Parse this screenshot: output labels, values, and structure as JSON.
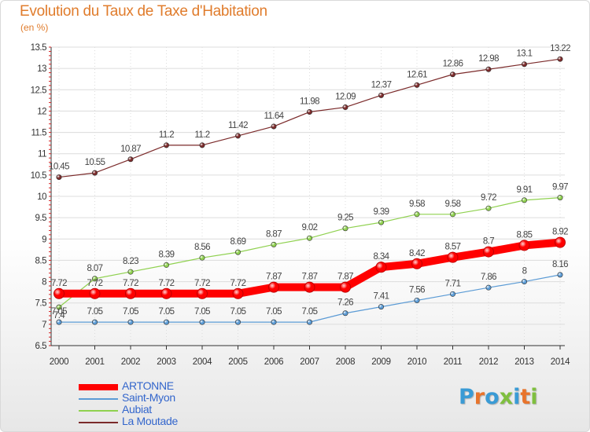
{
  "header": {
    "title": "Evolution du Taux de Taxe d'Habitation",
    "subtitle": "(en %)"
  },
  "logo": {
    "text": "Proxiti",
    "colors": [
      "#3a9bd5",
      "#e8742c",
      "#3a9bd5",
      "#7fbf3f",
      "#3a9bd5",
      "#e8742c",
      "#7fbf3f"
    ]
  },
  "chart_data": {
    "type": "line",
    "x": [
      2000,
      2001,
      2002,
      2003,
      2004,
      2005,
      2006,
      2007,
      2008,
      2009,
      2010,
      2011,
      2012,
      2013,
      2014
    ],
    "ylim": [
      6.5,
      13.5
    ],
    "yticks": [
      6.5,
      7,
      7.5,
      8,
      8.5,
      9,
      9.5,
      10,
      10.5,
      11,
      11.5,
      12,
      12.5,
      13,
      13.5
    ],
    "ytick_labels": [
      "6.5",
      "7",
      "7.5",
      "8",
      "8.5",
      "9",
      "9.5",
      "10",
      "10.5",
      "11",
      "11.5",
      "12",
      "12.5",
      "13",
      "13.5"
    ],
    "grid": true,
    "legend_position": "bottom-left",
    "series": [
      {
        "name": "ARTONNE",
        "color": "#ff0000",
        "values": [
          7.72,
          7.72,
          7.72,
          7.72,
          7.72,
          7.72,
          7.87,
          7.87,
          7.87,
          8.34,
          8.42,
          8.57,
          8.7,
          8.85,
          8.92
        ]
      },
      {
        "name": "Saint-Myon",
        "color": "#5b9bd5",
        "values": [
          7.05,
          7.05,
          7.05,
          7.05,
          7.05,
          7.05,
          7.05,
          7.05,
          7.26,
          7.41,
          7.56,
          7.71,
          7.86,
          8,
          8.16
        ]
      },
      {
        "name": "Aubiat",
        "color": "#8fd14f",
        "values": [
          7.4,
          8.07,
          8.23,
          8.39,
          8.56,
          8.69,
          8.87,
          9.02,
          9.25,
          9.39,
          9.58,
          9.58,
          9.72,
          9.91,
          9.97
        ]
      },
      {
        "name": "La Moutade",
        "color": "#7b2a2a",
        "values": [
          10.45,
          10.55,
          10.87,
          11.2,
          11.2,
          11.42,
          11.64,
          11.98,
          12.09,
          12.37,
          12.61,
          12.86,
          12.98,
          13.1,
          13.22
        ]
      }
    ],
    "point_labels": {
      "ARTONNE": [
        "7.72",
        "7.72",
        "7.72",
        "7.72",
        "7.72",
        "7.72",
        "7.87",
        "7.87",
        "7.87",
        "8.34",
        "8.42",
        "8.57",
        "8.7",
        "8.85",
        "8.92"
      ],
      "Saint-Myon": [
        "7.05",
        "7.05",
        "7.05",
        "7.05",
        "7.05",
        "7.05",
        "7.05",
        "7.05",
        "7.26",
        "7.41",
        "7.56",
        "7.71",
        "7.86",
        "8",
        "8.16"
      ],
      "Aubiat": [
        "7.4",
        "8.07",
        "8.23",
        "8.39",
        "8.56",
        "8.69",
        "8.87",
        "9.02",
        "9.25",
        "9.39",
        "9.58",
        "9.58",
        "9.72",
        "9.91",
        "9.97"
      ],
      "La Moutade": [
        "10.45",
        "10.55",
        "10.87",
        "11.2",
        "11.2",
        "11.42",
        "11.64",
        "11.98",
        "12.09",
        "12.37",
        "12.61",
        "12.86",
        "12.98",
        "13.1",
        "13.22"
      ]
    }
  }
}
